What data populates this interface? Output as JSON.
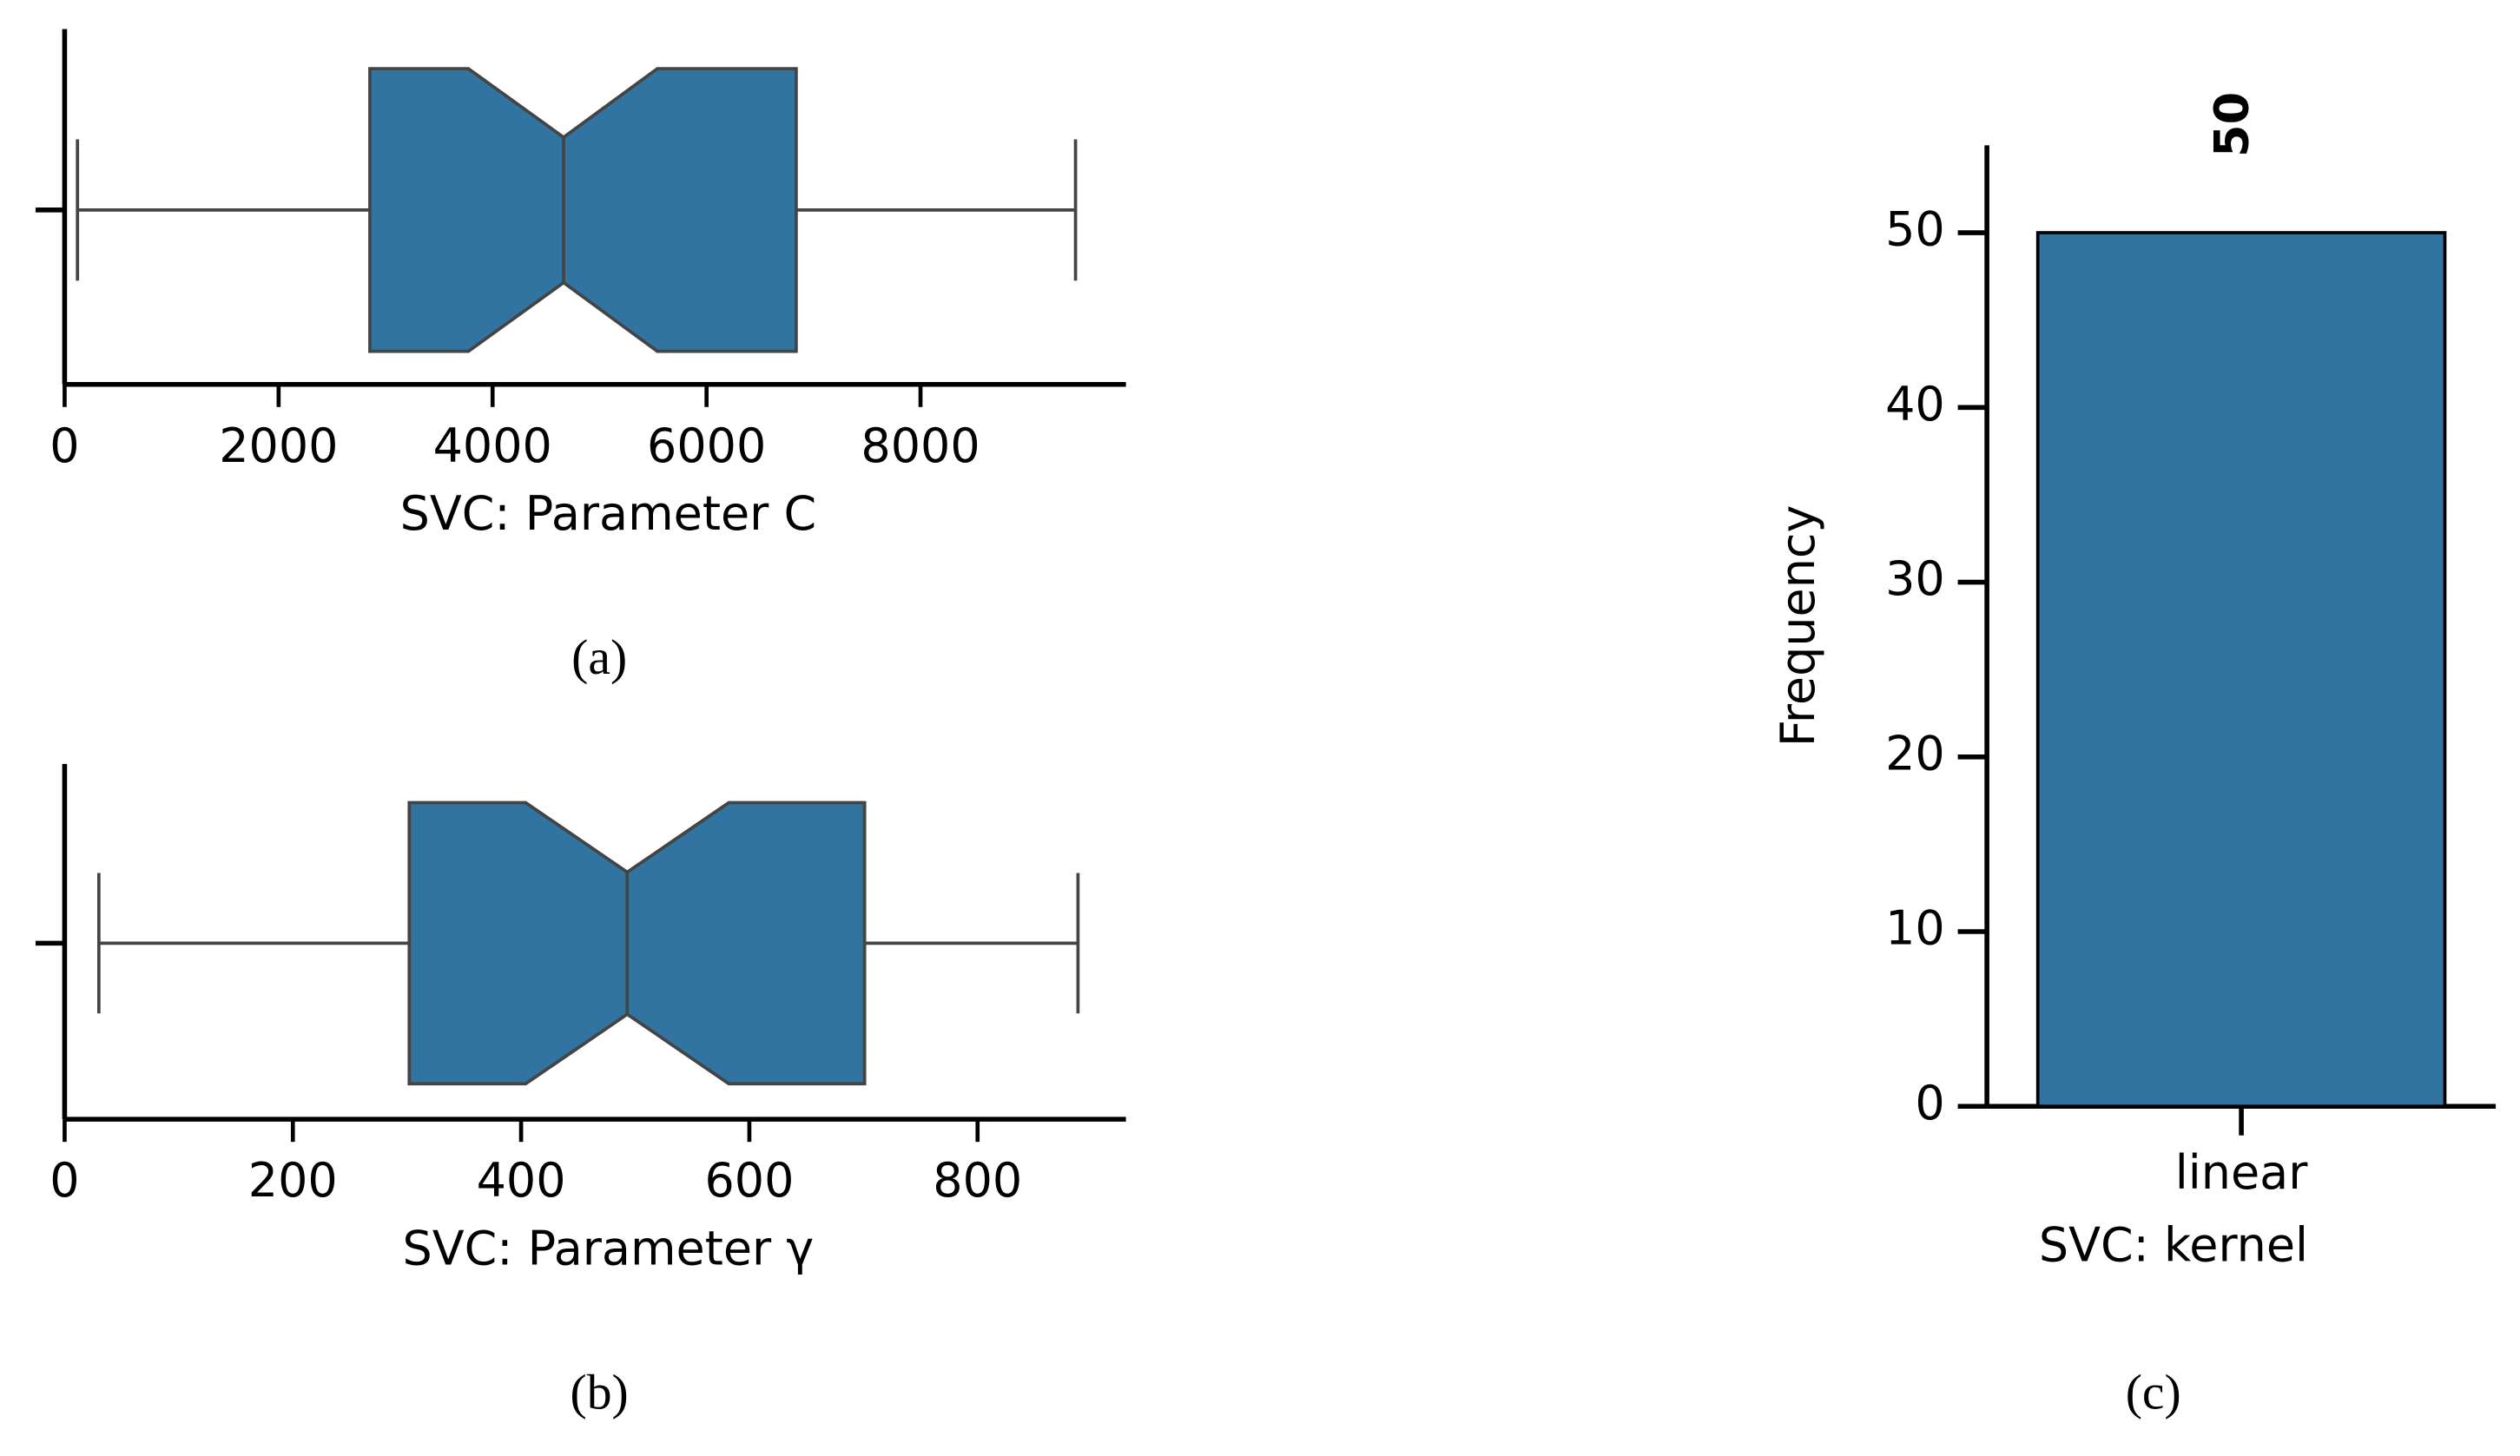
{
  "chart_data": [
    {
      "type": "box",
      "xlabel": "SVC: Parameter C",
      "caption": "(a)",
      "stats": {
        "min": 120,
        "q1": 2853,
        "notch_low": 3774,
        "median": 4664,
        "notch_high": 5540,
        "q3": 6838,
        "max": 9449
      },
      "color": "#3274a1",
      "xlim": [
        0,
        9920
      ],
      "xticks": [
        0,
        2000,
        4000,
        6000,
        8000
      ]
    },
    {
      "type": "box",
      "xlabel": "SVC: Parameter γ",
      "caption": "(b)",
      "stats": {
        "min": 30,
        "q1": 302,
        "notch_low": 404,
        "median": 493,
        "notch_high": 582,
        "q3": 701,
        "max": 888
      },
      "color": "#3274a1",
      "xlim": [
        0,
        930
      ],
      "xticks": [
        0,
        200,
        400,
        600,
        800
      ]
    },
    {
      "type": "bar",
      "xlabel": "SVC: kernel",
      "ylabel": "Frequency",
      "caption": "(c)",
      "categories": [
        "linear"
      ],
      "values": [
        50
      ],
      "color": "#3274a1",
      "ylim": [
        0,
        55
      ],
      "yticks": [
        0,
        10,
        20,
        30,
        40,
        50
      ]
    }
  ]
}
